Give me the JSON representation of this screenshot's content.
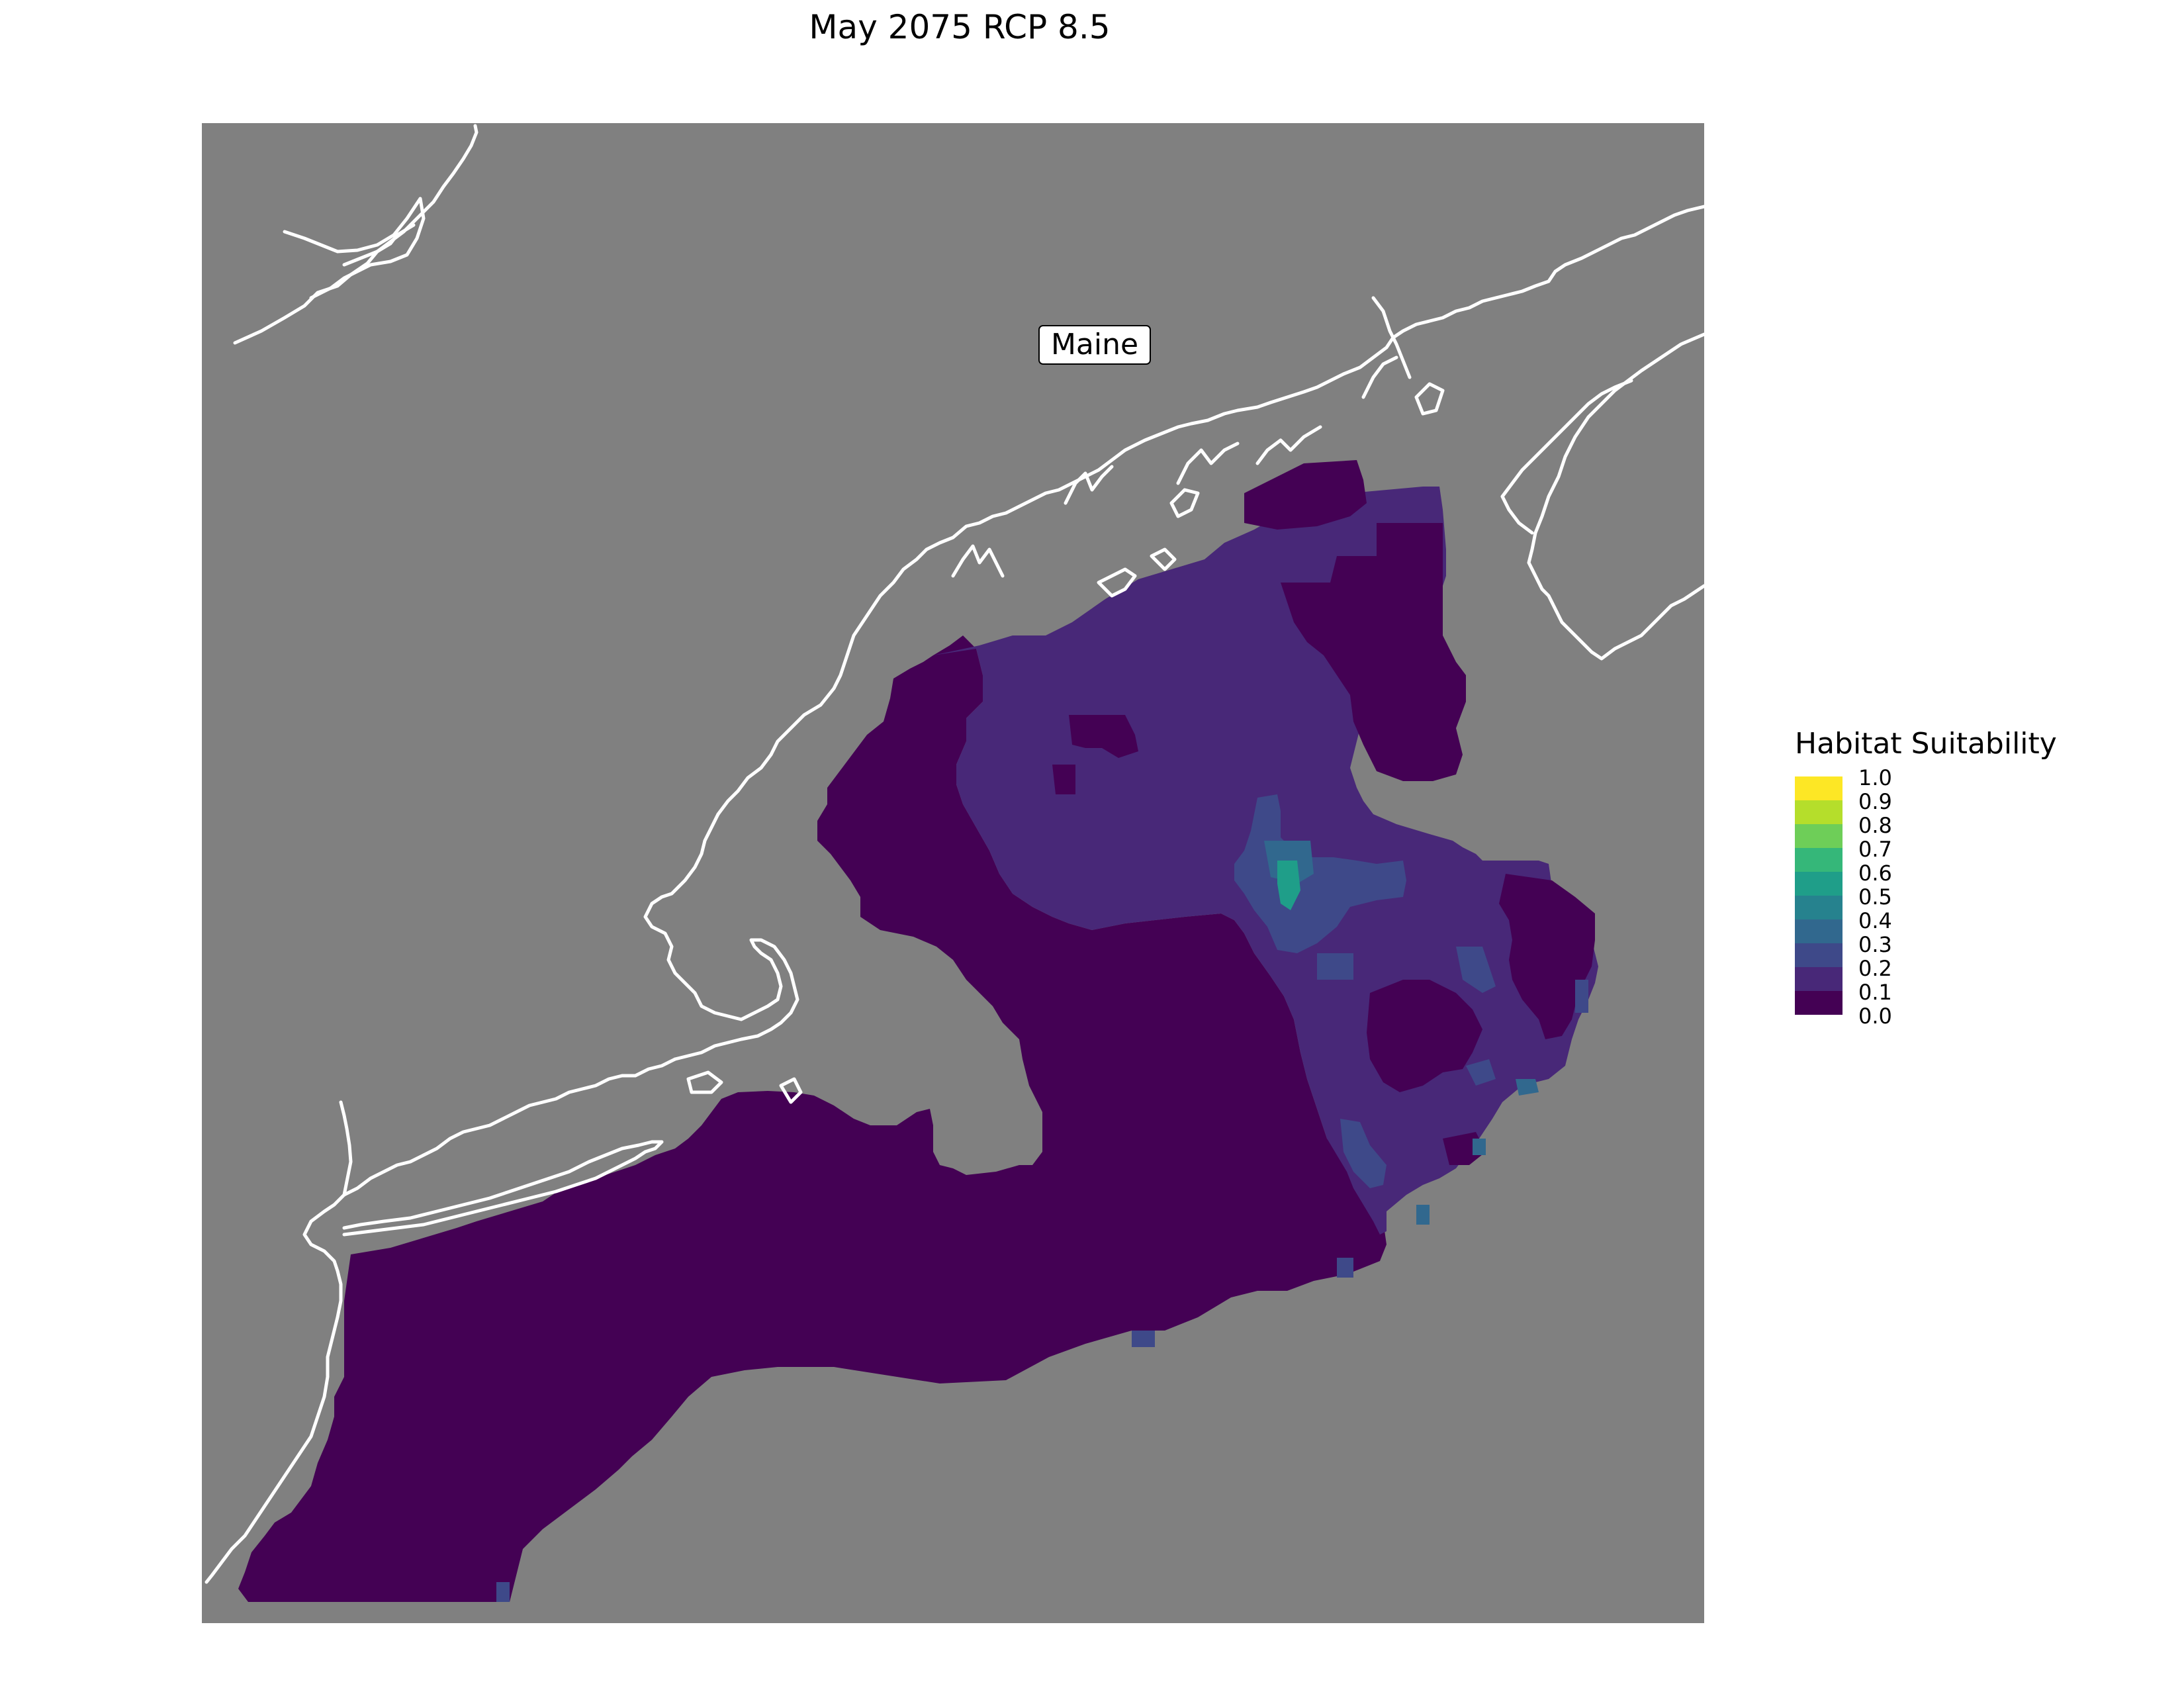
{
  "title": "May 2075 RCP 8.5",
  "map": {
    "background_color": "#808080",
    "coastline_color": "#ffffff",
    "place_label": "Maine"
  },
  "legend": {
    "title": "Habitat Suitability",
    "ticks": [
      "1.0",
      "0.9",
      "0.8",
      "0.7",
      "0.6",
      "0.5",
      "0.4",
      "0.3",
      "0.2",
      "0.1",
      "0.0"
    ],
    "bins": [
      {
        "range": "0.9-1.0",
        "color": "#fde725"
      },
      {
        "range": "0.8-0.9",
        "color": "#b5de2b"
      },
      {
        "range": "0.7-0.8",
        "color": "#6ece58"
      },
      {
        "range": "0.6-0.7",
        "color": "#35b779"
      },
      {
        "range": "0.5-0.6",
        "color": "#1f9e89"
      },
      {
        "range": "0.4-0.5",
        "color": "#26828e"
      },
      {
        "range": "0.3-0.4",
        "color": "#31688e"
      },
      {
        "range": "0.2-0.3",
        "color": "#3e4989"
      },
      {
        "range": "0.1-0.2",
        "color": "#482878"
      },
      {
        "range": "0.0-0.1",
        "color": "#440154"
      }
    ]
  }
}
